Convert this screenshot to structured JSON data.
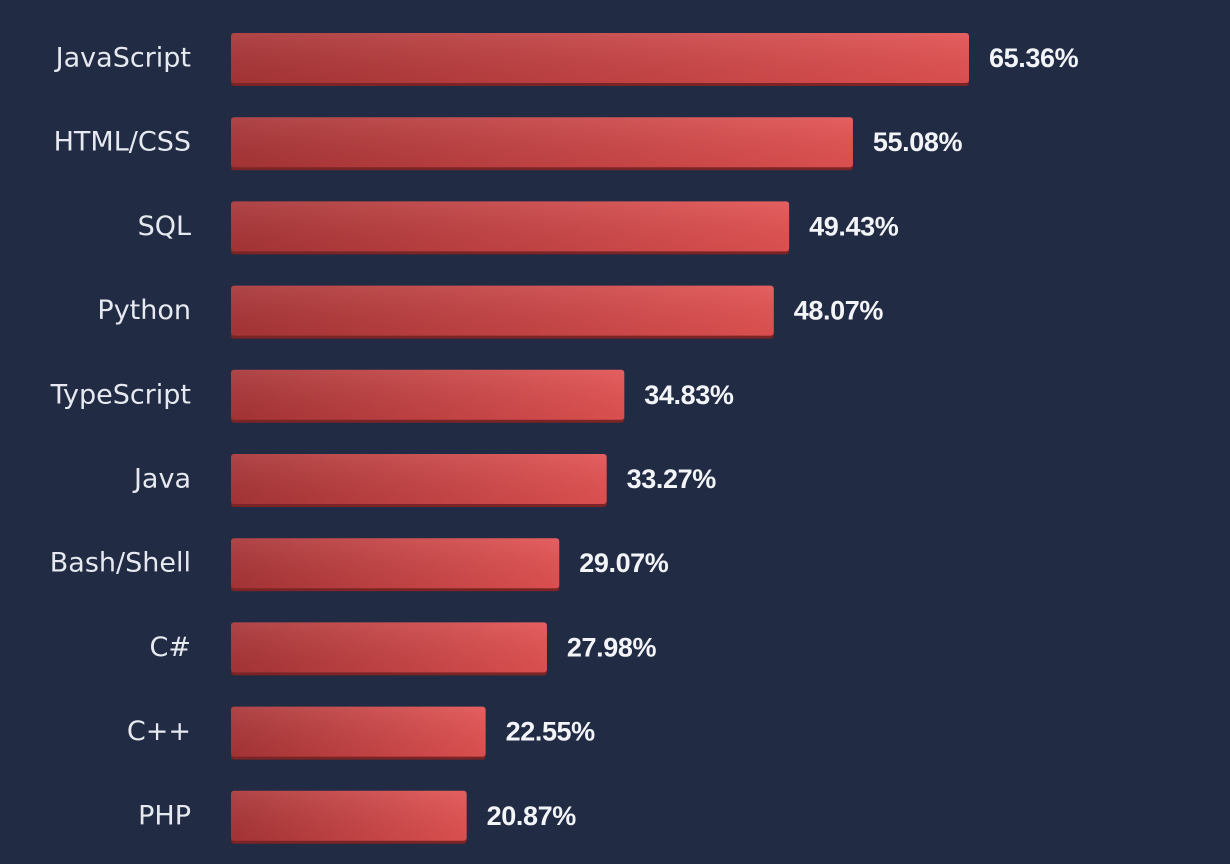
{
  "chart_data": {
    "type": "bar",
    "orientation": "horizontal",
    "categories": [
      "JavaScript",
      "HTML/CSS",
      "SQL",
      "Python",
      "TypeScript",
      "Java",
      "Bash/Shell",
      "C#",
      "C++",
      "PHP"
    ],
    "values": [
      65.36,
      55.08,
      49.43,
      48.07,
      34.83,
      33.27,
      29.07,
      27.98,
      22.55,
      20.87
    ],
    "value_labels": [
      "65.36%",
      "55.08%",
      "49.43%",
      "48.07%",
      "34.83%",
      "33.27%",
      "29.07%",
      "27.98%",
      "22.55%",
      "20.87%"
    ],
    "unit": "%",
    "grid": false,
    "legend": "none",
    "colors": {
      "background": "#212b43",
      "bar_start": "#a83537",
      "bar_end": "#e25252",
      "bar_shadow": "#7b2426",
      "category_text": "#e6e9ef",
      "value_text": "#f2f4f8"
    }
  }
}
